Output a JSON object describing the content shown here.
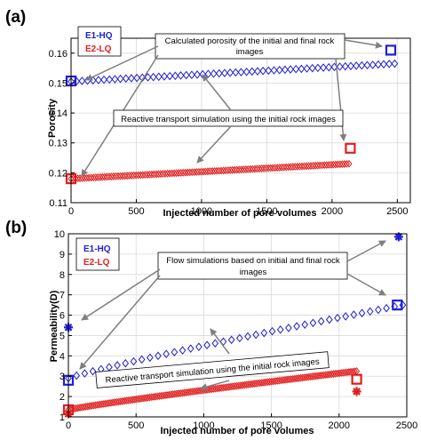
{
  "figure": {
    "colors": {
      "e1": "#1f1fd6",
      "e2": "#e01e1e",
      "arrow": "#7f7f7f"
    }
  },
  "chart_data": [
    {
      "type": "scatter",
      "panel_label": "(a)",
      "xlabel": "Injected number of pore volumes",
      "ylabel": "Porosity",
      "xlim": [
        0,
        2600
      ],
      "ylim": [
        0.11,
        0.165
      ],
      "xticks": [
        "0",
        "500",
        "1000",
        "1500",
        "2000",
        "2500"
      ],
      "yticks": [
        "0.11",
        "0.12",
        "0.13",
        "0.14",
        "0.15",
        "0.16"
      ],
      "legend": {
        "placement": "top-left",
        "items": [
          "E1-HQ",
          "E2-LQ"
        ]
      },
      "series": [
        {
          "name": "E1-HQ",
          "marker": "diamond",
          "color": "#1f1fd6",
          "x_start": 0,
          "x_end": 2480,
          "y_start": 0.1505,
          "y_end": 0.1565,
          "count": 60
        },
        {
          "name": "E2-LQ",
          "marker": "diamond",
          "color": "#e01e1e",
          "x_start": 0,
          "x_end": 2130,
          "y_start": 0.118,
          "y_end": 0.123,
          "count": 125
        }
      ],
      "highlights": [
        {
          "series": "E1-HQ",
          "marker": "square",
          "x": 0,
          "y": 0.1507
        },
        {
          "series": "E1-HQ",
          "marker": "square",
          "x": 2450,
          "y": 0.161
        },
        {
          "series": "E2-LQ",
          "marker": "square",
          "x": 0,
          "y": 0.118
        },
        {
          "series": "E2-LQ",
          "marker": "square",
          "x": 2140,
          "y": 0.1282
        }
      ],
      "annotations": [
        {
          "text_lines": [
            "Calculated porosity of the initial and final rock",
            "images"
          ]
        },
        {
          "text_lines": [
            "Reactive transport simulation using the initial rock images"
          ]
        }
      ]
    },
    {
      "type": "scatter",
      "panel_label": "(b)",
      "xlabel": "Injected number of pore volumes",
      "ylabel": "Permeability(D)",
      "xlim": [
        0,
        2500
      ],
      "ylim": [
        1,
        10
      ],
      "xticks": [
        "0",
        "500",
        "1000",
        "1500",
        "2000",
        "2500"
      ],
      "yticks": [
        "1",
        "2",
        "3",
        "4",
        "5",
        "6",
        "7",
        "8",
        "9",
        "10"
      ],
      "legend": {
        "placement": "top-left",
        "items": [
          "E1-HQ",
          "E2-LQ"
        ]
      },
      "series": [
        {
          "name": "E1-HQ",
          "marker": "diamond",
          "color": "#1f1fd6",
          "x_start": 0,
          "x_end": 2470,
          "y_start": 2.9,
          "y_end": 6.5,
          "count": 42
        },
        {
          "name": "E2-LQ",
          "marker": "diamond",
          "color": "#e01e1e",
          "x_start": 0,
          "x_end": 2130,
          "y_start": 1.35,
          "y_end": 3.25,
          "count": 150
        }
      ],
      "highlights": [
        {
          "series": "E1-HQ",
          "marker": "square",
          "x": 0,
          "y": 2.8
        },
        {
          "series": "E1-HQ",
          "marker": "square",
          "x": 2430,
          "y": 6.5
        },
        {
          "series": "E1-HQ",
          "marker": "asterisk",
          "x": 0,
          "y": 5.4
        },
        {
          "series": "E1-HQ",
          "marker": "asterisk",
          "x": 2440,
          "y": 9.85
        },
        {
          "series": "E2-LQ",
          "marker": "square",
          "x": 0,
          "y": 1.35
        },
        {
          "series": "E2-LQ",
          "marker": "square",
          "x": 2130,
          "y": 2.85
        },
        {
          "series": "E2-LQ",
          "marker": "asterisk",
          "x": 0,
          "y": 1.15
        },
        {
          "series": "E2-LQ",
          "marker": "asterisk",
          "x": 2130,
          "y": 2.25
        }
      ],
      "annotations": [
        {
          "text_lines": [
            "Flow simulations based on initial and final rock",
            "images"
          ]
        },
        {
          "text_lines": [
            "Reactive transport simulation using the initial rock images"
          ]
        }
      ]
    }
  ]
}
